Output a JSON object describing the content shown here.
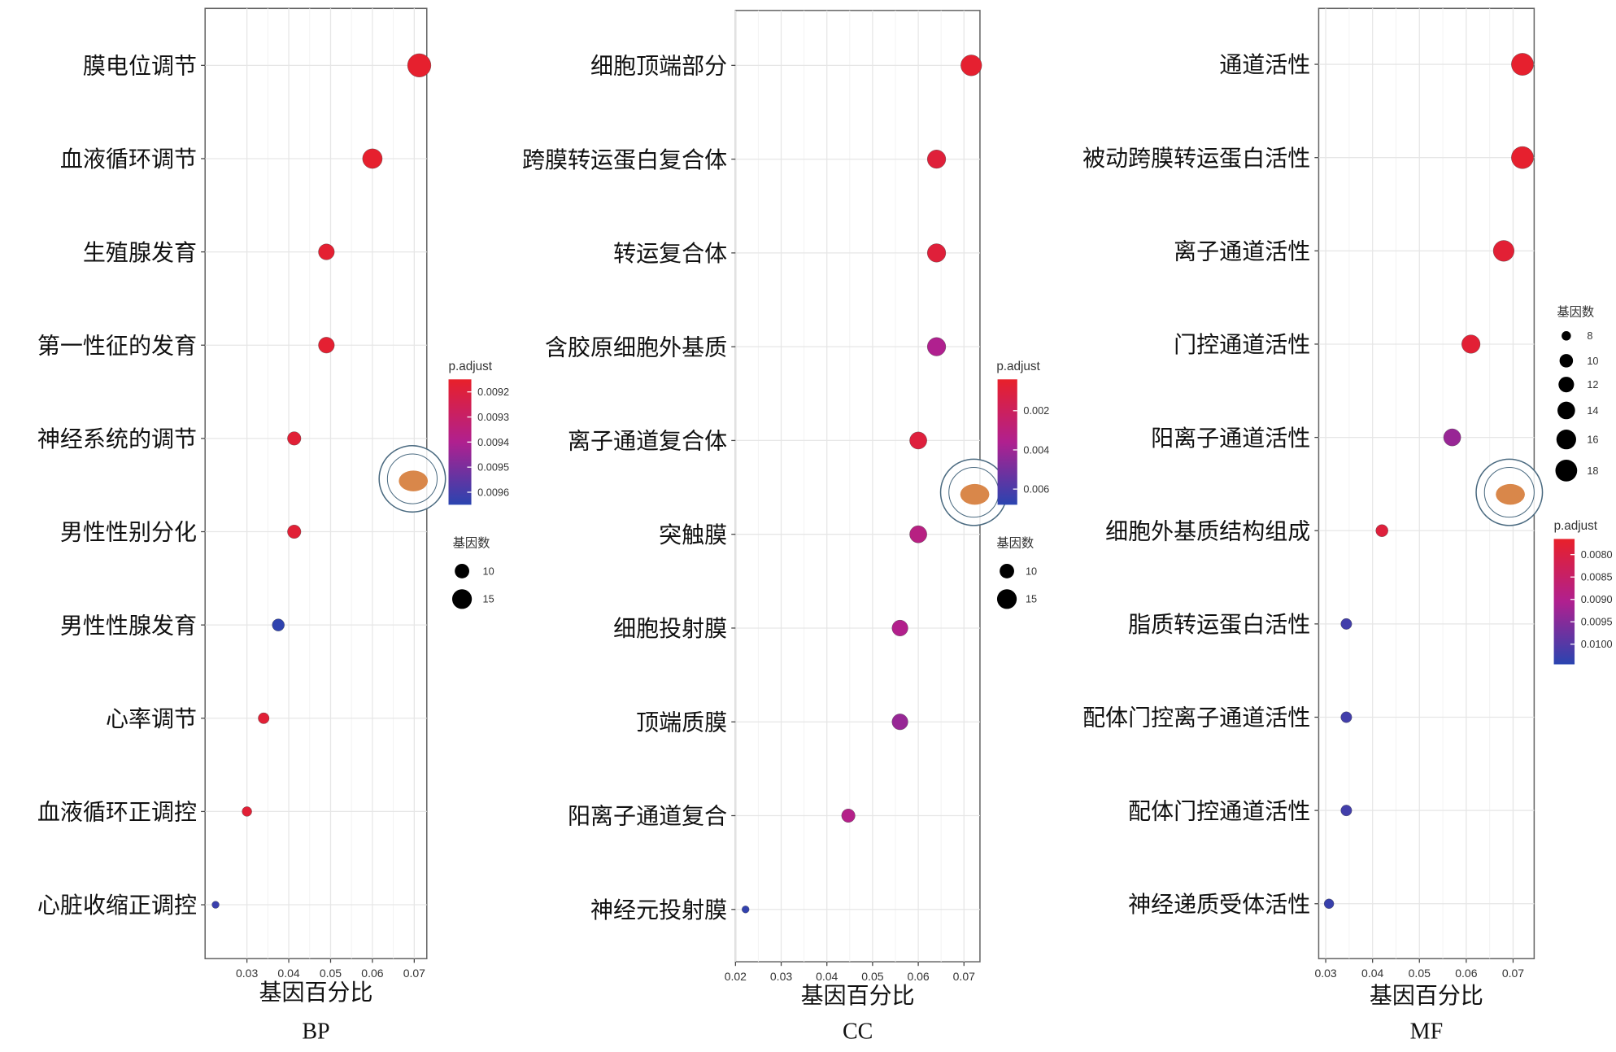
{
  "chart_data": [
    {
      "type": "scatter",
      "title": "BP",
      "xlabel": "基因百分比",
      "xlim": [
        0.02,
        0.073
      ],
      "xticks": [
        "0.03",
        "0.04",
        "0.05",
        "0.06",
        "0.07"
      ],
      "categories": [
        "膜电位调节",
        "血液循环调节",
        "生殖腺发育",
        "第一性征的发育",
        "神经系统的调节",
        "男性性别分化",
        "男性性腺发育",
        "心率调节",
        "血液循环正调控",
        "心脏收缩正调控"
      ],
      "x": [
        0.0712,
        0.06,
        0.049,
        0.049,
        0.0413,
        0.0413,
        0.0375,
        0.034,
        0.03,
        0.0225
      ],
      "count": [
        19,
        16,
        13,
        13,
        11,
        11,
        10,
        9,
        8,
        6
      ],
      "p_adjust": [
        0.00916,
        0.00916,
        0.00917,
        0.00917,
        0.00918,
        0.00918,
        0.00964,
        0.00918,
        0.00918,
        0.00962
      ],
      "color_legend": {
        "title": "p.adjust",
        "ticks": [
          "0.0092",
          "0.0093",
          "0.0094",
          "0.0095",
          "0.0096"
        ],
        "range": [
          0.00915,
          0.00965
        ]
      },
      "size_legend": {
        "title": "基因数",
        "ticks": [
          "10",
          "15"
        ]
      },
      "grid": true
    },
    {
      "type": "scatter",
      "title": "CC",
      "xlabel": "基因百分比",
      "xlim": [
        0.02,
        0.0735
      ],
      "xticks": [
        "0.02",
        "0.03",
        "0.04",
        "0.05",
        "0.06",
        "0.07"
      ],
      "categories": [
        "细胞顶端部分",
        "跨膜转运蛋白复合体",
        "转运复合体",
        "含胶原细胞外基质",
        "离子通道复合体",
        "突触膜",
        "细胞投射膜",
        "顶端质膜",
        "阳离子通道复合",
        "神经元投射膜"
      ],
      "x": [
        0.0716,
        0.064,
        0.064,
        0.064,
        0.06,
        0.06,
        0.056,
        0.056,
        0.0447,
        0.0222
      ],
      "count": [
        17,
        15,
        15,
        15,
        14,
        14,
        13,
        13,
        11,
        6
      ],
      "p_adjust": [
        0.0006,
        0.0009,
        0.0009,
        0.0036,
        0.001,
        0.0032,
        0.0035,
        0.0042,
        0.0034,
        0.0066
      ],
      "color_legend": {
        "title": "p.adjust",
        "ticks": [
          "0.002",
          "0.004",
          "0.006"
        ],
        "range": [
          0.0004,
          0.0068
        ]
      },
      "size_legend": {
        "title": "基因数",
        "ticks": [
          "10",
          "15"
        ]
      },
      "grid": true
    },
    {
      "type": "scatter",
      "title": "MF",
      "xlabel": "基因百分比",
      "xlim": [
        0.0285,
        0.0745
      ],
      "xticks": [
        "0.03",
        "0.04",
        "0.05",
        "0.06",
        "0.07"
      ],
      "categories": [
        "通道活性",
        "被动跨膜转运蛋白活性",
        "离子通道活性",
        "门控通道活性",
        "阳离子通道活性",
        "细胞外基质结构组成",
        "脂质转运蛋白活性",
        "配体门控离子通道活性",
        "配体门控通道活性",
        "神经递质受体活性"
      ],
      "x": [
        0.072,
        0.072,
        0.068,
        0.061,
        0.057,
        0.042,
        0.0344,
        0.0344,
        0.0344,
        0.0307
      ],
      "count": [
        18,
        18,
        17,
        15,
        14,
        10,
        9,
        9,
        9,
        8
      ],
      "p_adjust": [
        0.0077,
        0.0077,
        0.0078,
        0.0078,
        0.0093,
        0.0079,
        0.0102,
        0.0102,
        0.0102,
        0.0103
      ],
      "color_legend": {
        "title": "p.adjust",
        "ticks": [
          "0.0080",
          "0.0085",
          "0.0090",
          "0.0095",
          "0.0100"
        ],
        "range": [
          0.00765,
          0.01045
        ]
      },
      "size_legend": {
        "title": "基因数",
        "ticks": [
          "8",
          "10",
          "12",
          "14",
          "16",
          "18"
        ]
      },
      "grid": true
    }
  ]
}
